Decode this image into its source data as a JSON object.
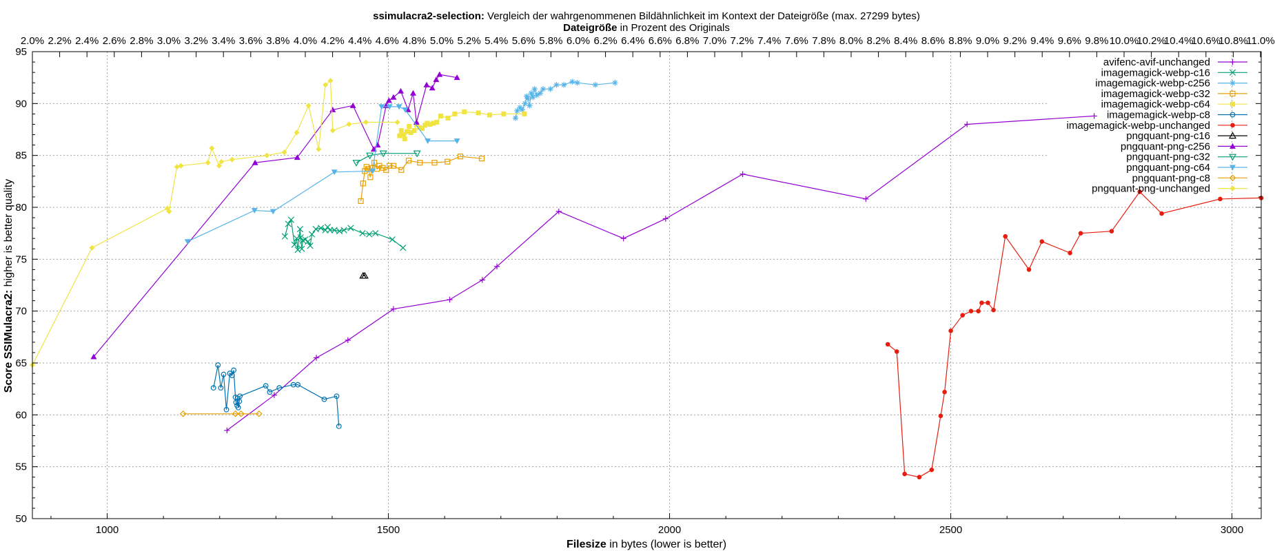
{
  "title": {
    "bold": "ssimulacra2-selection:",
    "rest": " Vergleich der wahrgenommenen Bildähnlichkeit im Kontext der Dateigröße (max. 27299 bytes)"
  },
  "x2label": {
    "bold": "Dateigröße",
    "rest": " in Prozent des Originals"
  },
  "xlabel": {
    "bold": "Filesize",
    "rest": " in bytes (lower is better)"
  },
  "ylabel": {
    "bold": "Score SSIMulacra2:",
    "rest": " higher is better quality"
  },
  "chart_data": {
    "type": "scatter",
    "xlim": [
      867,
      3052
    ],
    "ylim": [
      50,
      95
    ],
    "x_ticks": [
      1000,
      1500,
      2000,
      2500,
      3000
    ],
    "y_ticks": [
      50,
      55,
      60,
      65,
      70,
      75,
      80,
      85,
      90,
      95
    ],
    "x2_tick_labels": [
      "2.0%",
      "2.2%",
      "2.4%",
      "2.6%",
      "2.8%",
      "3.0%",
      "3.2%",
      "3.4%",
      "3.6%",
      "3.8%",
      "4.0%",
      "4.2%",
      "4.4%",
      "4.6%",
      "4.8%",
      "5.0%",
      "5.2%",
      "5.4%",
      "5.6%",
      "5.8%",
      "6.0%",
      "6.2%",
      "6.4%",
      "6.6%",
      "6.8%",
      "7.0%",
      "7.2%",
      "7.4%",
      "7.6%",
      "7.8%",
      "8.0%",
      "8.2%",
      "8.4%",
      "8.6%",
      "8.8%",
      "9.0%",
      "9.2%",
      "9.4%",
      "9.6%",
      "9.8%",
      "10.0%",
      "10.2%",
      "10.4%",
      "10.6%",
      "10.8%",
      "11.0%"
    ],
    "grid": true,
    "legend_position": "top-right",
    "series": [
      {
        "name": "avifenc-avif-unchanged",
        "color": "#9400d3",
        "marker": "plus",
        "points": [
          [
            1213,
            58.5
          ],
          [
            1297,
            61.9
          ],
          [
            1372,
            65.5
          ],
          [
            1428,
            67.2
          ],
          [
            1509,
            70.2
          ],
          [
            1609,
            71.1
          ],
          [
            1667,
            73.0
          ],
          [
            1693,
            74.3
          ],
          [
            1803,
            79.6
          ],
          [
            1918,
            77.0
          ],
          [
            1993,
            78.9
          ],
          [
            2130,
            83.2
          ],
          [
            2349,
            80.8
          ],
          [
            2529,
            88.0
          ],
          [
            2755,
            88.8
          ]
        ]
      },
      {
        "name": "imagemagick-webp-c16",
        "color": "#009e73",
        "marker": "x",
        "points": [
          [
            1316,
            77.2
          ],
          [
            1322,
            78.4
          ],
          [
            1327,
            78.8
          ],
          [
            1333,
            76.4
          ],
          [
            1337,
            77.0
          ],
          [
            1339,
            75.9
          ],
          [
            1343,
            77.9
          ],
          [
            1344,
            77.1
          ],
          [
            1346,
            76.0
          ],
          [
            1348,
            76.8
          ],
          [
            1352,
            76.9
          ],
          [
            1357,
            76.7
          ],
          [
            1361,
            76.3
          ],
          [
            1364,
            77.4
          ],
          [
            1371,
            77.9
          ],
          [
            1380,
            78.0
          ],
          [
            1388,
            77.8
          ],
          [
            1392,
            78.1
          ],
          [
            1396,
            77.8
          ],
          [
            1404,
            77.8
          ],
          [
            1413,
            77.7
          ],
          [
            1421,
            77.8
          ],
          [
            1433,
            78.0
          ],
          [
            1454,
            77.5
          ],
          [
            1466,
            77.4
          ],
          [
            1477,
            77.5
          ],
          [
            1507,
            76.9
          ],
          [
            1526,
            76.1
          ]
        ]
      },
      {
        "name": "imagemagick-webp-c256",
        "color": "#56b4e9",
        "marker": "star",
        "points": [
          [
            1726,
            88.6
          ],
          [
            1729,
            89.3
          ],
          [
            1734,
            89.6
          ],
          [
            1738,
            89.4
          ],
          [
            1743,
            90.0
          ],
          [
            1746,
            90.7
          ],
          [
            1748,
            90.5
          ],
          [
            1751,
            89.8
          ],
          [
            1754,
            91.0
          ],
          [
            1757,
            90.6
          ],
          [
            1760,
            91.4
          ],
          [
            1764,
            90.8
          ],
          [
            1770,
            91.0
          ],
          [
            1775,
            91.4
          ],
          [
            1788,
            91.4
          ],
          [
            1799,
            91.8
          ],
          [
            1812,
            91.8
          ],
          [
            1827,
            92.1
          ],
          [
            1836,
            92.0
          ],
          [
            1868,
            91.8
          ],
          [
            1903,
            92.0
          ]
        ]
      },
      {
        "name": "imagemagick-webp-c32",
        "color": "#e69f00",
        "marker": "square-open",
        "points": [
          [
            1451,
            80.6
          ],
          [
            1455,
            82.3
          ],
          [
            1458,
            83.5
          ],
          [
            1461,
            83.9
          ],
          [
            1464,
            83.7
          ],
          [
            1468,
            82.9
          ],
          [
            1471,
            83.8
          ],
          [
            1475,
            84.3
          ],
          [
            1480,
            83.7
          ],
          [
            1484,
            84.0
          ],
          [
            1490,
            83.8
          ],
          [
            1496,
            83.6
          ],
          [
            1502,
            84.0
          ],
          [
            1509,
            84.0
          ],
          [
            1523,
            83.6
          ],
          [
            1536,
            84.5
          ],
          [
            1556,
            84.3
          ],
          [
            1582,
            84.3
          ],
          [
            1605,
            84.4
          ],
          [
            1628,
            84.9
          ],
          [
            1666,
            84.7
          ]
        ]
      },
      {
        "name": "imagemagick-webp-c64",
        "color": "#f0e442",
        "marker": "square",
        "points": [
          [
            1520,
            86.9
          ],
          [
            1523,
            87.4
          ],
          [
            1526,
            87.0
          ],
          [
            1529,
            86.6
          ],
          [
            1533,
            87.3
          ],
          [
            1537,
            87.8
          ],
          [
            1540,
            87.2
          ],
          [
            1546,
            87.4
          ],
          [
            1550,
            88.0
          ],
          [
            1555,
            87.7
          ],
          [
            1560,
            87.6
          ],
          [
            1565,
            87.9
          ],
          [
            1569,
            88.1
          ],
          [
            1574,
            88.0
          ],
          [
            1580,
            88.1
          ],
          [
            1586,
            88.2
          ],
          [
            1593,
            88.8
          ],
          [
            1606,
            88.6
          ],
          [
            1618,
            89.0
          ],
          [
            1635,
            89.2
          ],
          [
            1660,
            89.1
          ],
          [
            1680,
            88.9
          ],
          [
            1705,
            89.0
          ],
          [
            1742,
            89.0
          ]
        ]
      },
      {
        "name": "imagemagick-webp-c8",
        "color": "#0072b2",
        "marker": "circle-open",
        "points": [
          [
            1189,
            62.6
          ],
          [
            1197,
            64.8
          ],
          [
            1202,
            62.6
          ],
          [
            1207,
            63.9
          ],
          [
            1212,
            60.5
          ],
          [
            1218,
            64.0
          ],
          [
            1222,
            63.8
          ],
          [
            1225,
            64.3
          ],
          [
            1228,
            61.7
          ],
          [
            1229,
            61.2
          ],
          [
            1231,
            60.9
          ],
          [
            1232,
            61.6
          ],
          [
            1233,
            60.7
          ],
          [
            1235,
            61.3
          ],
          [
            1236,
            61.8
          ],
          [
            1282,
            62.8
          ],
          [
            1289,
            62.2
          ],
          [
            1306,
            62.6
          ],
          [
            1331,
            62.9
          ],
          [
            1339,
            62.9
          ],
          [
            1386,
            61.5
          ],
          [
            1408,
            61.8
          ],
          [
            1412,
            58.9
          ]
        ]
      },
      {
        "name": "imagemagick-webp-unchanged",
        "color": "#e51e10",
        "marker": "circle-filled",
        "points": [
          [
            2388,
            66.8
          ],
          [
            2404,
            66.1
          ],
          [
            2418,
            54.3
          ],
          [
            2444,
            54.0
          ],
          [
            2466,
            54.7
          ],
          [
            2482,
            59.9
          ],
          [
            2489,
            62.2
          ],
          [
            2500,
            68.1
          ],
          [
            2521,
            69.6
          ],
          [
            2536,
            70.0
          ],
          [
            2549,
            70.0
          ],
          [
            2555,
            70.8
          ],
          [
            2566,
            70.8
          ],
          [
            2576,
            70.1
          ],
          [
            2597,
            77.2
          ],
          [
            2639,
            74.0
          ],
          [
            2662,
            76.7
          ],
          [
            2712,
            75.6
          ],
          [
            2731,
            77.5
          ],
          [
            2786,
            77.7
          ],
          [
            2836,
            81.5
          ],
          [
            2875,
            79.4
          ],
          [
            2979,
            80.8
          ],
          [
            3052,
            80.9
          ]
        ]
      },
      {
        "name": "pngquant-png-c16",
        "color": "#000000",
        "marker": "triangle-open",
        "points": [
          [
            1455,
            73.4
          ],
          [
            1458,
            73.4
          ]
        ]
      },
      {
        "name": "pngquant-png-c256",
        "color": "#9400d3",
        "marker": "triangle",
        "points": [
          [
            976,
            65.6
          ],
          [
            1263,
            84.3
          ],
          [
            1338,
            84.8
          ],
          [
            1401,
            89.4
          ],
          [
            1437,
            89.8
          ],
          [
            1474,
            85.6
          ],
          [
            1481,
            86.0
          ],
          [
            1496,
            89.8
          ],
          [
            1501,
            90.3
          ],
          [
            1509,
            90.6
          ],
          [
            1522,
            91.2
          ],
          [
            1535,
            89.4
          ],
          [
            1544,
            91.0
          ],
          [
            1550,
            88.2
          ],
          [
            1568,
            91.8
          ],
          [
            1578,
            91.5
          ],
          [
            1585,
            92.3
          ],
          [
            1591,
            92.8
          ],
          [
            1622,
            92.5
          ]
        ]
      },
      {
        "name": "pngquant-png-c32",
        "color": "#009e73",
        "marker": "triangle-down-open",
        "points": [
          [
            1443,
            84.3
          ],
          [
            1467,
            85.0
          ],
          [
            1491,
            85.2
          ],
          [
            1551,
            85.2
          ]
        ]
      },
      {
        "name": "pngquant-png-c64",
        "color": "#56b4e9",
        "marker": "triangle-down",
        "points": [
          [
            1143,
            76.7
          ],
          [
            1262,
            79.7
          ],
          [
            1295,
            79.6
          ],
          [
            1404,
            83.4
          ],
          [
            1472,
            83.5
          ],
          [
            1488,
            89.7
          ],
          [
            1502,
            89.7
          ],
          [
            1519,
            89.7
          ],
          [
            1530,
            89.4
          ],
          [
            1570,
            86.4
          ],
          [
            1622,
            86.4
          ]
        ]
      },
      {
        "name": "pngquant-png-c8",
        "color": "#e69f00",
        "marker": "diamond-open",
        "points": [
          [
            1135,
            60.1
          ],
          [
            1228,
            60.1
          ],
          [
            1238,
            60.1
          ],
          [
            1270,
            60.1
          ]
        ]
      },
      {
        "name": "pngquant-png-unchanged",
        "color": "#f0e442",
        "marker": "diamond",
        "points": [
          [
            867,
            64.8
          ],
          [
            973,
            76.1
          ],
          [
            1107,
            79.9
          ],
          [
            1110,
            79.6
          ],
          [
            1124,
            83.9
          ],
          [
            1131,
            84.0
          ],
          [
            1179,
            84.3
          ],
          [
            1186,
            85.7
          ],
          [
            1199,
            84.0
          ],
          [
            1203,
            84.4
          ],
          [
            1222,
            84.6
          ],
          [
            1284,
            85.0
          ],
          [
            1315,
            85.3
          ],
          [
            1337,
            87.2
          ],
          [
            1358,
            89.8
          ],
          [
            1376,
            85.6
          ],
          [
            1388,
            91.8
          ],
          [
            1397,
            92.2
          ],
          [
            1401,
            87.4
          ],
          [
            1430,
            88.0
          ],
          [
            1460,
            88.2
          ],
          [
            1516,
            88.2
          ]
        ]
      }
    ]
  }
}
